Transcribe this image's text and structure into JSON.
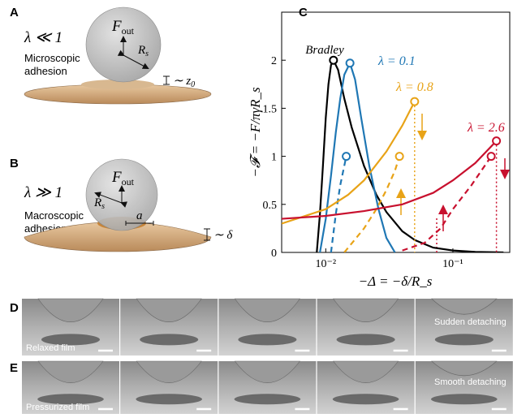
{
  "panel_a": {
    "label": "A",
    "regime": "λ ≪ 1",
    "caption": [
      "Microscopic",
      "adhesion"
    ],
    "force": {
      "symbol": "F",
      "subscript": "out"
    },
    "radius": {
      "symbol": "R",
      "subscript": "s"
    },
    "scale": {
      "symbol": "∼ z",
      "subscript": "0"
    }
  },
  "panel_b": {
    "label": "B",
    "regime": "λ ≫ 1",
    "caption": [
      "Macroscopic",
      "adhesion"
    ],
    "force": {
      "symbol": "F",
      "subscript": "out"
    },
    "radius": {
      "symbol": "R",
      "subscript": "s"
    },
    "contact": "a",
    "scale": "∼ δ"
  },
  "panel_c_label": "C",
  "chart_data": {
    "type": "line",
    "xlabel": "−Δ = −δ/R_s",
    "ylabel": "−𝓕 = −F/πγR_s",
    "xscale": "log",
    "xlim": [
      0.0045,
      0.28
    ],
    "ylim": [
      0,
      2.5
    ],
    "xticks": [
      {
        "value": 0.01,
        "label": "10⁻²"
      },
      {
        "value": 0.1,
        "label": "10⁻¹"
      }
    ],
    "yticks": [
      0,
      0.5,
      1,
      1.5,
      2
    ],
    "grid": false,
    "series": [
      {
        "name": "Bradley",
        "color": "#000000",
        "dash": false,
        "marker": true,
        "drop": false,
        "x": [
          0.0085,
          0.009,
          0.0095,
          0.01,
          0.0105,
          0.011,
          0.0115,
          0.0125,
          0.014,
          0.016,
          0.02,
          0.025,
          0.03,
          0.04,
          0.05,
          0.07,
          0.1,
          0.15,
          0.25
        ],
        "values": [
          0,
          0.4,
          0.9,
          1.4,
          1.75,
          1.95,
          2.0,
          1.9,
          1.6,
          1.3,
          0.9,
          0.6,
          0.42,
          0.22,
          0.13,
          0.05,
          0.02,
          0.005,
          0
        ]
      },
      {
        "name": "λ = 0.1",
        "color": "#1f77b4",
        "dash": false,
        "marker": true,
        "drop": false,
        "x": [
          0.009,
          0.01,
          0.011,
          0.012,
          0.013,
          0.014,
          0.0155,
          0.017,
          0.019,
          0.022,
          0.026,
          0.03,
          0.035
        ],
        "values": [
          0,
          0.35,
          0.8,
          1.25,
          1.6,
          1.85,
          1.97,
          1.8,
          1.4,
          0.9,
          0.45,
          0.15,
          0
        ]
      },
      {
        "color": "#1f77b4",
        "dash": true,
        "marker": true,
        "drop": false,
        "x": [
          0.011,
          0.012,
          0.013,
          0.0145
        ],
        "values": [
          0,
          0.4,
          0.7,
          1.0
        ]
      },
      {
        "name": "λ = 0.8",
        "color": "#e8a317",
        "dash": false,
        "marker": true,
        "drop": true,
        "x": [
          0.0045,
          0.01,
          0.015,
          0.02,
          0.03,
          0.04,
          0.05
        ],
        "values": [
          0.3,
          0.45,
          0.6,
          0.75,
          1.05,
          1.32,
          1.57
        ]
      },
      {
        "color": "#e8a317",
        "dash": true,
        "marker": true,
        "drop": false,
        "x": [
          0.014,
          0.02,
          0.025,
          0.03,
          0.035,
          0.038
        ],
        "values": [
          0,
          0.25,
          0.45,
          0.65,
          0.85,
          1.0
        ]
      },
      {
        "name": "λ = 2.6",
        "color": "#c8102e",
        "dash": false,
        "marker": true,
        "drop": true,
        "x": [
          0.0045,
          0.01,
          0.02,
          0.04,
          0.07,
          0.1,
          0.15,
          0.22
        ],
        "values": [
          0.35,
          0.38,
          0.43,
          0.5,
          0.62,
          0.75,
          0.93,
          1.16
        ]
      },
      {
        "color": "#c8102e",
        "dash": true,
        "marker": true,
        "drop": false,
        "x": [
          0.04,
          0.06,
          0.08,
          0.1,
          0.14,
          0.2
        ],
        "values": [
          0.02,
          0.1,
          0.25,
          0.45,
          0.7,
          1.0
        ]
      }
    ]
  },
  "panel_d": {
    "label": "D",
    "note": "Sudden detaching",
    "film": "Relaxed film"
  },
  "panel_e": {
    "label": "E",
    "note": "Smooth detaching",
    "film": "Pressurized film"
  }
}
